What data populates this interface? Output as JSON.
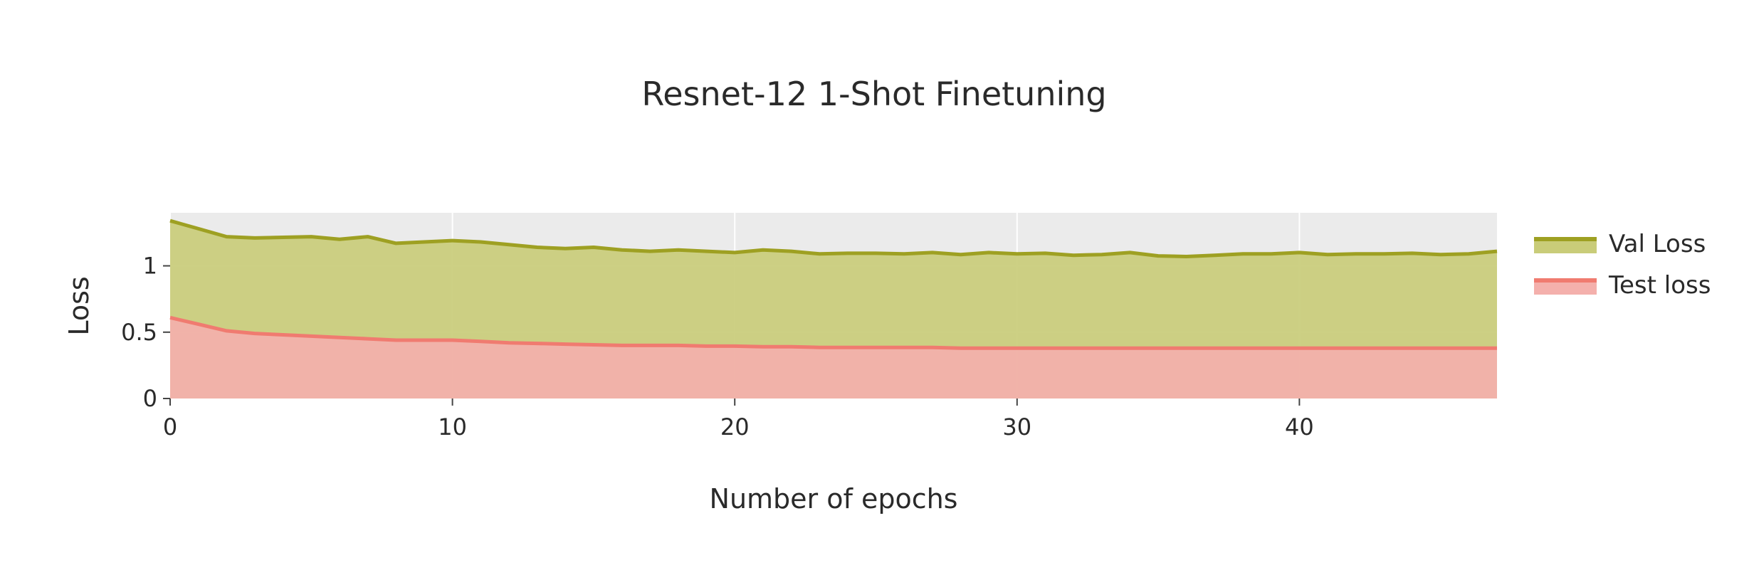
{
  "chart_data": {
    "type": "area",
    "title": "Resnet-12 1-Shot Finetuning",
    "xlabel": "Number of epochs",
    "ylabel": "Loss",
    "xlim": [
      0,
      47
    ],
    "ylim": [
      0,
      1.4
    ],
    "x_ticks": [
      0,
      10,
      20,
      30,
      40
    ],
    "y_ticks": [
      0,
      0.5,
      1
    ],
    "y_tick_labels": [
      "0",
      "0.5",
      "1"
    ],
    "grid": true,
    "legend_position": "right",
    "x": [
      0,
      1,
      2,
      3,
      4,
      5,
      6,
      7,
      8,
      9,
      10,
      11,
      12,
      13,
      14,
      15,
      16,
      17,
      18,
      19,
      20,
      21,
      22,
      23,
      24,
      25,
      26,
      27,
      28,
      29,
      30,
      31,
      32,
      33,
      34,
      35,
      36,
      37,
      38,
      39,
      40,
      41,
      42,
      43,
      44,
      45,
      46,
      47
    ],
    "series": [
      {
        "name": "Val Loss",
        "color": "#9ea022",
        "fill": "#c9cc79",
        "values": [
          1.34,
          1.28,
          1.22,
          1.21,
          1.215,
          1.22,
          1.2,
          1.22,
          1.17,
          1.18,
          1.19,
          1.18,
          1.16,
          1.14,
          1.13,
          1.14,
          1.12,
          1.11,
          1.12,
          1.11,
          1.1,
          1.12,
          1.11,
          1.09,
          1.095,
          1.095,
          1.09,
          1.1,
          1.085,
          1.1,
          1.09,
          1.095,
          1.08,
          1.085,
          1.1,
          1.075,
          1.07,
          1.08,
          1.09,
          1.09,
          1.1,
          1.085,
          1.09,
          1.09,
          1.095,
          1.085,
          1.09,
          1.11
        ]
      },
      {
        "name": "Test loss",
        "color": "#f07b70",
        "fill": "#f4b0ac",
        "values": [
          0.61,
          0.56,
          0.51,
          0.49,
          0.48,
          0.47,
          0.46,
          0.45,
          0.44,
          0.44,
          0.44,
          0.43,
          0.42,
          0.415,
          0.41,
          0.405,
          0.4,
          0.4,
          0.4,
          0.395,
          0.395,
          0.39,
          0.39,
          0.385,
          0.385,
          0.385,
          0.385,
          0.385,
          0.38,
          0.38,
          0.38,
          0.38,
          0.38,
          0.38,
          0.38,
          0.38,
          0.38,
          0.38,
          0.38,
          0.38,
          0.38,
          0.38,
          0.38,
          0.38,
          0.38,
          0.38,
          0.38,
          0.38
        ]
      }
    ]
  }
}
